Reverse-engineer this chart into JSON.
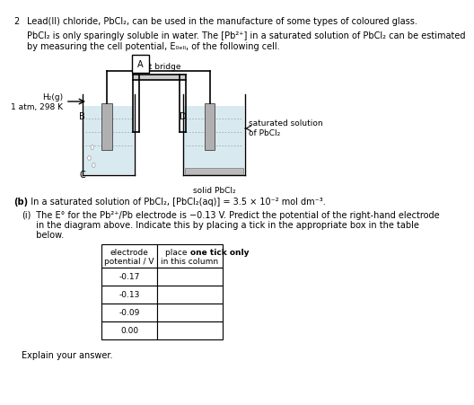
{
  "bg_color": "#ffffff",
  "question_number": "2",
  "title_text": "Lead(II) chloride, PbCl₂, can be used in the manufacture of some types of coloured glass.",
  "para1_line1": "PbCl₂ is only sparingly soluble in water. The [Pb²⁺] in a saturated solution of PbCl₂ can be estimated",
  "para1_line2": "by measuring the cell potential, E₀ₑₗₗ, of the following cell.",
  "label_A": "A",
  "label_B": "B",
  "label_C": "C",
  "label_D": "D",
  "label_h2": "H₂(g)",
  "label_atm": "1 atm, 298 K",
  "label_salt": "salt bridge",
  "label_sat": "saturated solution",
  "label_sat2": "of PbCl₂",
  "label_solid": "solid PbCl₂",
  "b_bold": "(b)",
  "b_rest": "  In a saturated solution of PbCl₂, [PbCl₂(aq)] = 3.5 × 10⁻² mol dm⁻³.",
  "i_label": "(i)",
  "i_text1": "  The E° for the Pb²⁺/Pb electrode is −0.13 V. Predict the potential of the right-hand electrode",
  "i_text2": "  in the diagram above. Indicate this by placing a tick in the appropriate box in the table",
  "i_text3": "  below.",
  "col1_header_line1": "electrode",
  "col1_header_line2": "potential / V",
  "col2_header_bold": "one tick only",
  "col2_header_pre": "place ",
  "col2_header_line2": "in this column",
  "row_values": [
    "-0.17",
    "-0.13",
    "-0.09",
    "0.00"
  ],
  "explain_text": "Explain your answer."
}
